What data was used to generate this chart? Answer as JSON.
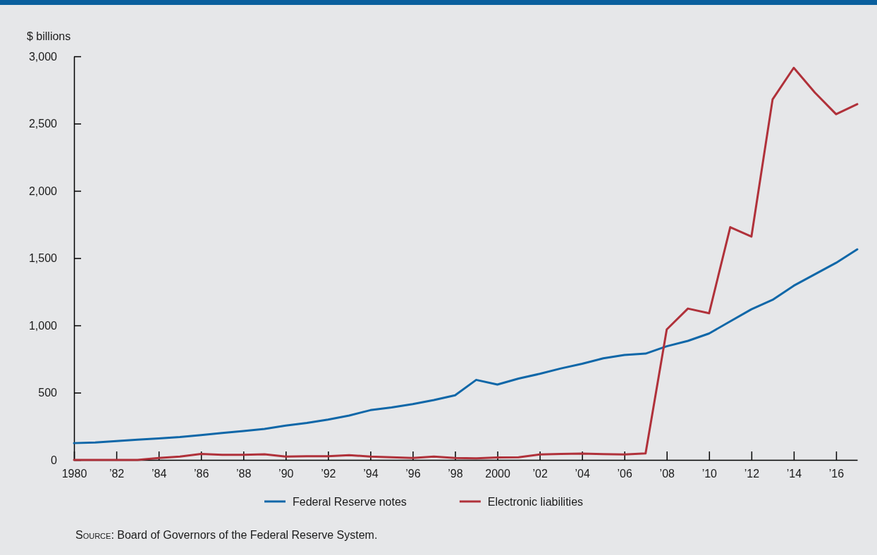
{
  "chart_data": {
    "type": "line",
    "ylabel": "$ billions",
    "x": [
      1980,
      1981,
      1982,
      1983,
      1984,
      1985,
      1986,
      1987,
      1988,
      1989,
      1990,
      1991,
      1992,
      1993,
      1994,
      1995,
      1996,
      1997,
      1998,
      1999,
      2000,
      2001,
      2002,
      2003,
      2004,
      2005,
      2006,
      2007,
      2008,
      2009,
      2010,
      2011,
      2012,
      2013,
      2014,
      2015,
      2016,
      2017
    ],
    "series": [
      {
        "name": "Federal Reserve notes",
        "color": "#0f67a8",
        "values": [
          125,
          130,
          140,
          150,
          160,
          170,
          185,
          200,
          215,
          230,
          255,
          275,
          300,
          330,
          370,
          390,
          415,
          445,
          480,
          595,
          560,
          605,
          640,
          680,
          715,
          755,
          780,
          790,
          845,
          885,
          940,
          1030,
          1120,
          1190,
          1295,
          1380,
          1465,
          1565
        ]
      },
      {
        "name": "Electronic liabilities",
        "color": "#b0313a",
        "values": [
          0,
          0,
          0,
          0,
          15,
          25,
          45,
          38,
          38,
          42,
          25,
          28,
          28,
          35,
          25,
          20,
          15,
          25,
          15,
          12,
          18,
          20,
          40,
          45,
          47,
          43,
          40,
          48,
          970,
          1125,
          1090,
          1730,
          1660,
          2680,
          2915,
          2730,
          2570,
          2645
        ]
      }
    ],
    "xlim": [
      1980,
      2017
    ],
    "xticks": [
      1980,
      {
        "value": 1982,
        "label": "’82"
      },
      {
        "value": 1984,
        "label": "’84"
      },
      {
        "value": 1986,
        "label": "’86"
      },
      {
        "value": 1988,
        "label": "’88"
      },
      {
        "value": 1990,
        "label": "’90"
      },
      {
        "value": 1992,
        "label": "’92"
      },
      {
        "value": 1994,
        "label": "’94"
      },
      {
        "value": 1996,
        "label": "’96"
      },
      {
        "value": 1998,
        "label": "’98"
      },
      2000,
      {
        "value": 2002,
        "label": "’02"
      },
      {
        "value": 2004,
        "label": "’04"
      },
      {
        "value": 2006,
        "label": "’06"
      },
      {
        "value": 2008,
        "label": "’08"
      },
      {
        "value": 2010,
        "label": "’10"
      },
      {
        "value": 2012,
        "label": "’12"
      },
      {
        "value": 2014,
        "label": "’14"
      },
      {
        "value": 2016,
        "label": "’16"
      }
    ],
    "ylim": [
      0,
      3000
    ],
    "yticks": [
      0,
      500,
      {
        "value": 1000,
        "label": "1,000"
      },
      {
        "value": 1500,
        "label": "1,500"
      },
      {
        "value": 2000,
        "label": "2,000"
      },
      {
        "value": 2500,
        "label": "2,500"
      },
      {
        "value": 3000,
        "label": "3,000"
      }
    ],
    "legend": "bottom",
    "grid": false,
    "marker": "none",
    "line_style": "solid",
    "annotations": [
      "Source: Board of Governors of the Federal Reserve System."
    ]
  }
}
